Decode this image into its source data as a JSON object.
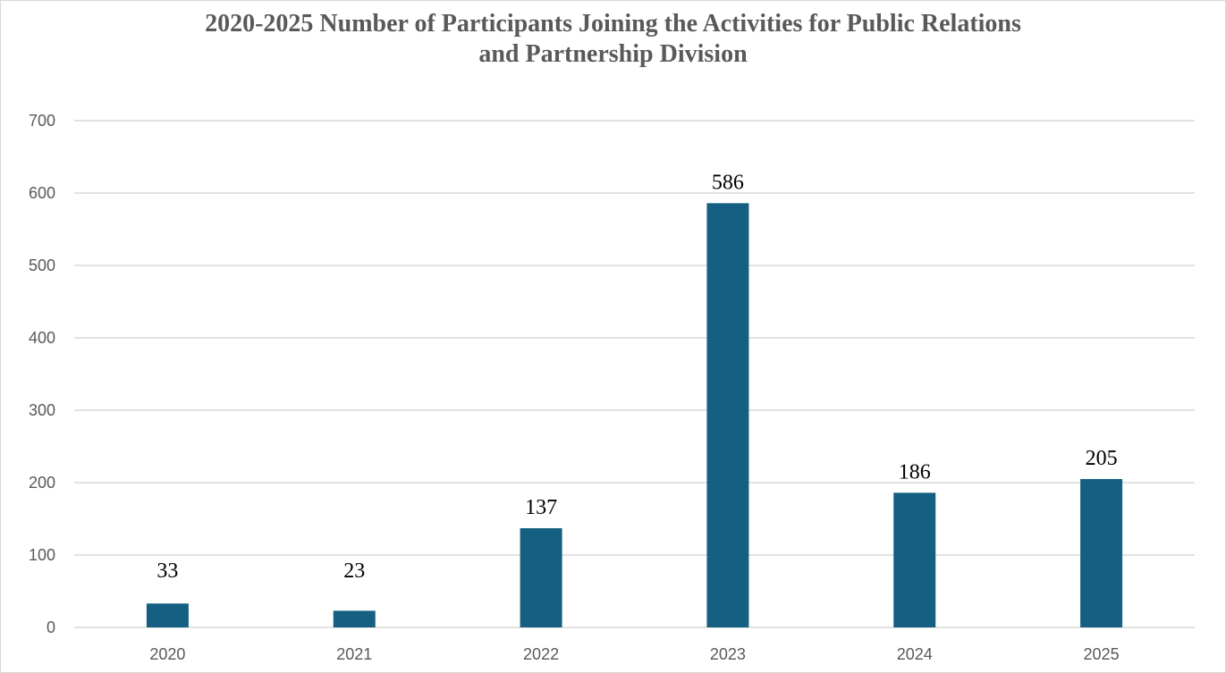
{
  "chart_data": {
    "type": "bar",
    "title_lines": [
      "2020-2025 Number of Participants Joining the Activities for Public Relations",
      "and Partnership Division"
    ],
    "categories": [
      "2020",
      "2021",
      "2022",
      "2023",
      "2024",
      "2025"
    ],
    "values": [
      33,
      23,
      137,
      586,
      186,
      205
    ],
    "data_labels": [
      "33",
      "23",
      "137",
      "586",
      "186",
      "205"
    ],
    "y_ticks": [
      0,
      100,
      200,
      300,
      400,
      500,
      600,
      700
    ],
    "ylim": [
      0,
      700
    ],
    "xlabel": "",
    "ylabel": "",
    "grid": true,
    "legend": "none",
    "colors": {
      "bar": "#156082",
      "grid": "#d9d9d9",
      "axis_text": "#595959",
      "title": "#595959"
    }
  }
}
